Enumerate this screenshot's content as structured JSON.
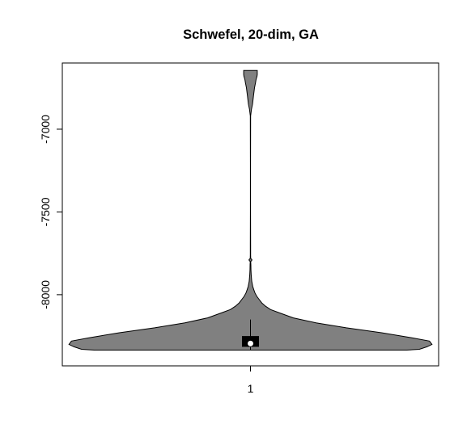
{
  "chart_data": {
    "type": "violin",
    "title": "Schwefel, 20-dim, GA",
    "xlabel": "",
    "ylabel": "",
    "categories": [
      "1"
    ],
    "ylim": [
      -8430,
      -6600
    ],
    "yticks": [
      -7000,
      -7500,
      -8000
    ],
    "ytick_labels": [
      "-7000",
      "-7500",
      "-8000"
    ],
    "violin": {
      "fill": "#808080",
      "profile_y": [
        -8335,
        -8330,
        -8315,
        -8300,
        -8280,
        -8260,
        -8230,
        -8200,
        -8170,
        -8140,
        -8110,
        -8090,
        -8070,
        -8050,
        -8030,
        -8010,
        -7990,
        -7970,
        -7950,
        -7920,
        -7880,
        -7850,
        -7820,
        -7800,
        -7790,
        -7780,
        -7760,
        -7700,
        -7500,
        -7200,
        -6920,
        -6880,
        -6850,
        -6800,
        -6750,
        -6720,
        -6700,
        -6690,
        -6680,
        -6670,
        -6660,
        -6645
      ],
      "profile_halfwidth_value": [
        0.62,
        0.67,
        0.7,
        0.72,
        0.71,
        0.64,
        0.52,
        0.38,
        0.26,
        0.17,
        0.115,
        0.08,
        0.06,
        0.045,
        0.035,
        0.025,
        0.018,
        0.013,
        0.009,
        0.005,
        0.003,
        0.002,
        0.0015,
        0.001,
        0.006,
        0.001,
        0.0008,
        0.0005,
        0.0004,
        0.0004,
        0.0005,
        0.004,
        0.008,
        0.012,
        0.016,
        0.02,
        0.022,
        0.024,
        0.026,
        0.027,
        0.027,
        0.027
      ]
    },
    "box": {
      "q1": -8315,
      "q3": -8250,
      "whisker_low": -8335,
      "whisker_high": -8150,
      "median": -8295
    },
    "box_color": "#000000",
    "median_color": "#ffffff"
  }
}
